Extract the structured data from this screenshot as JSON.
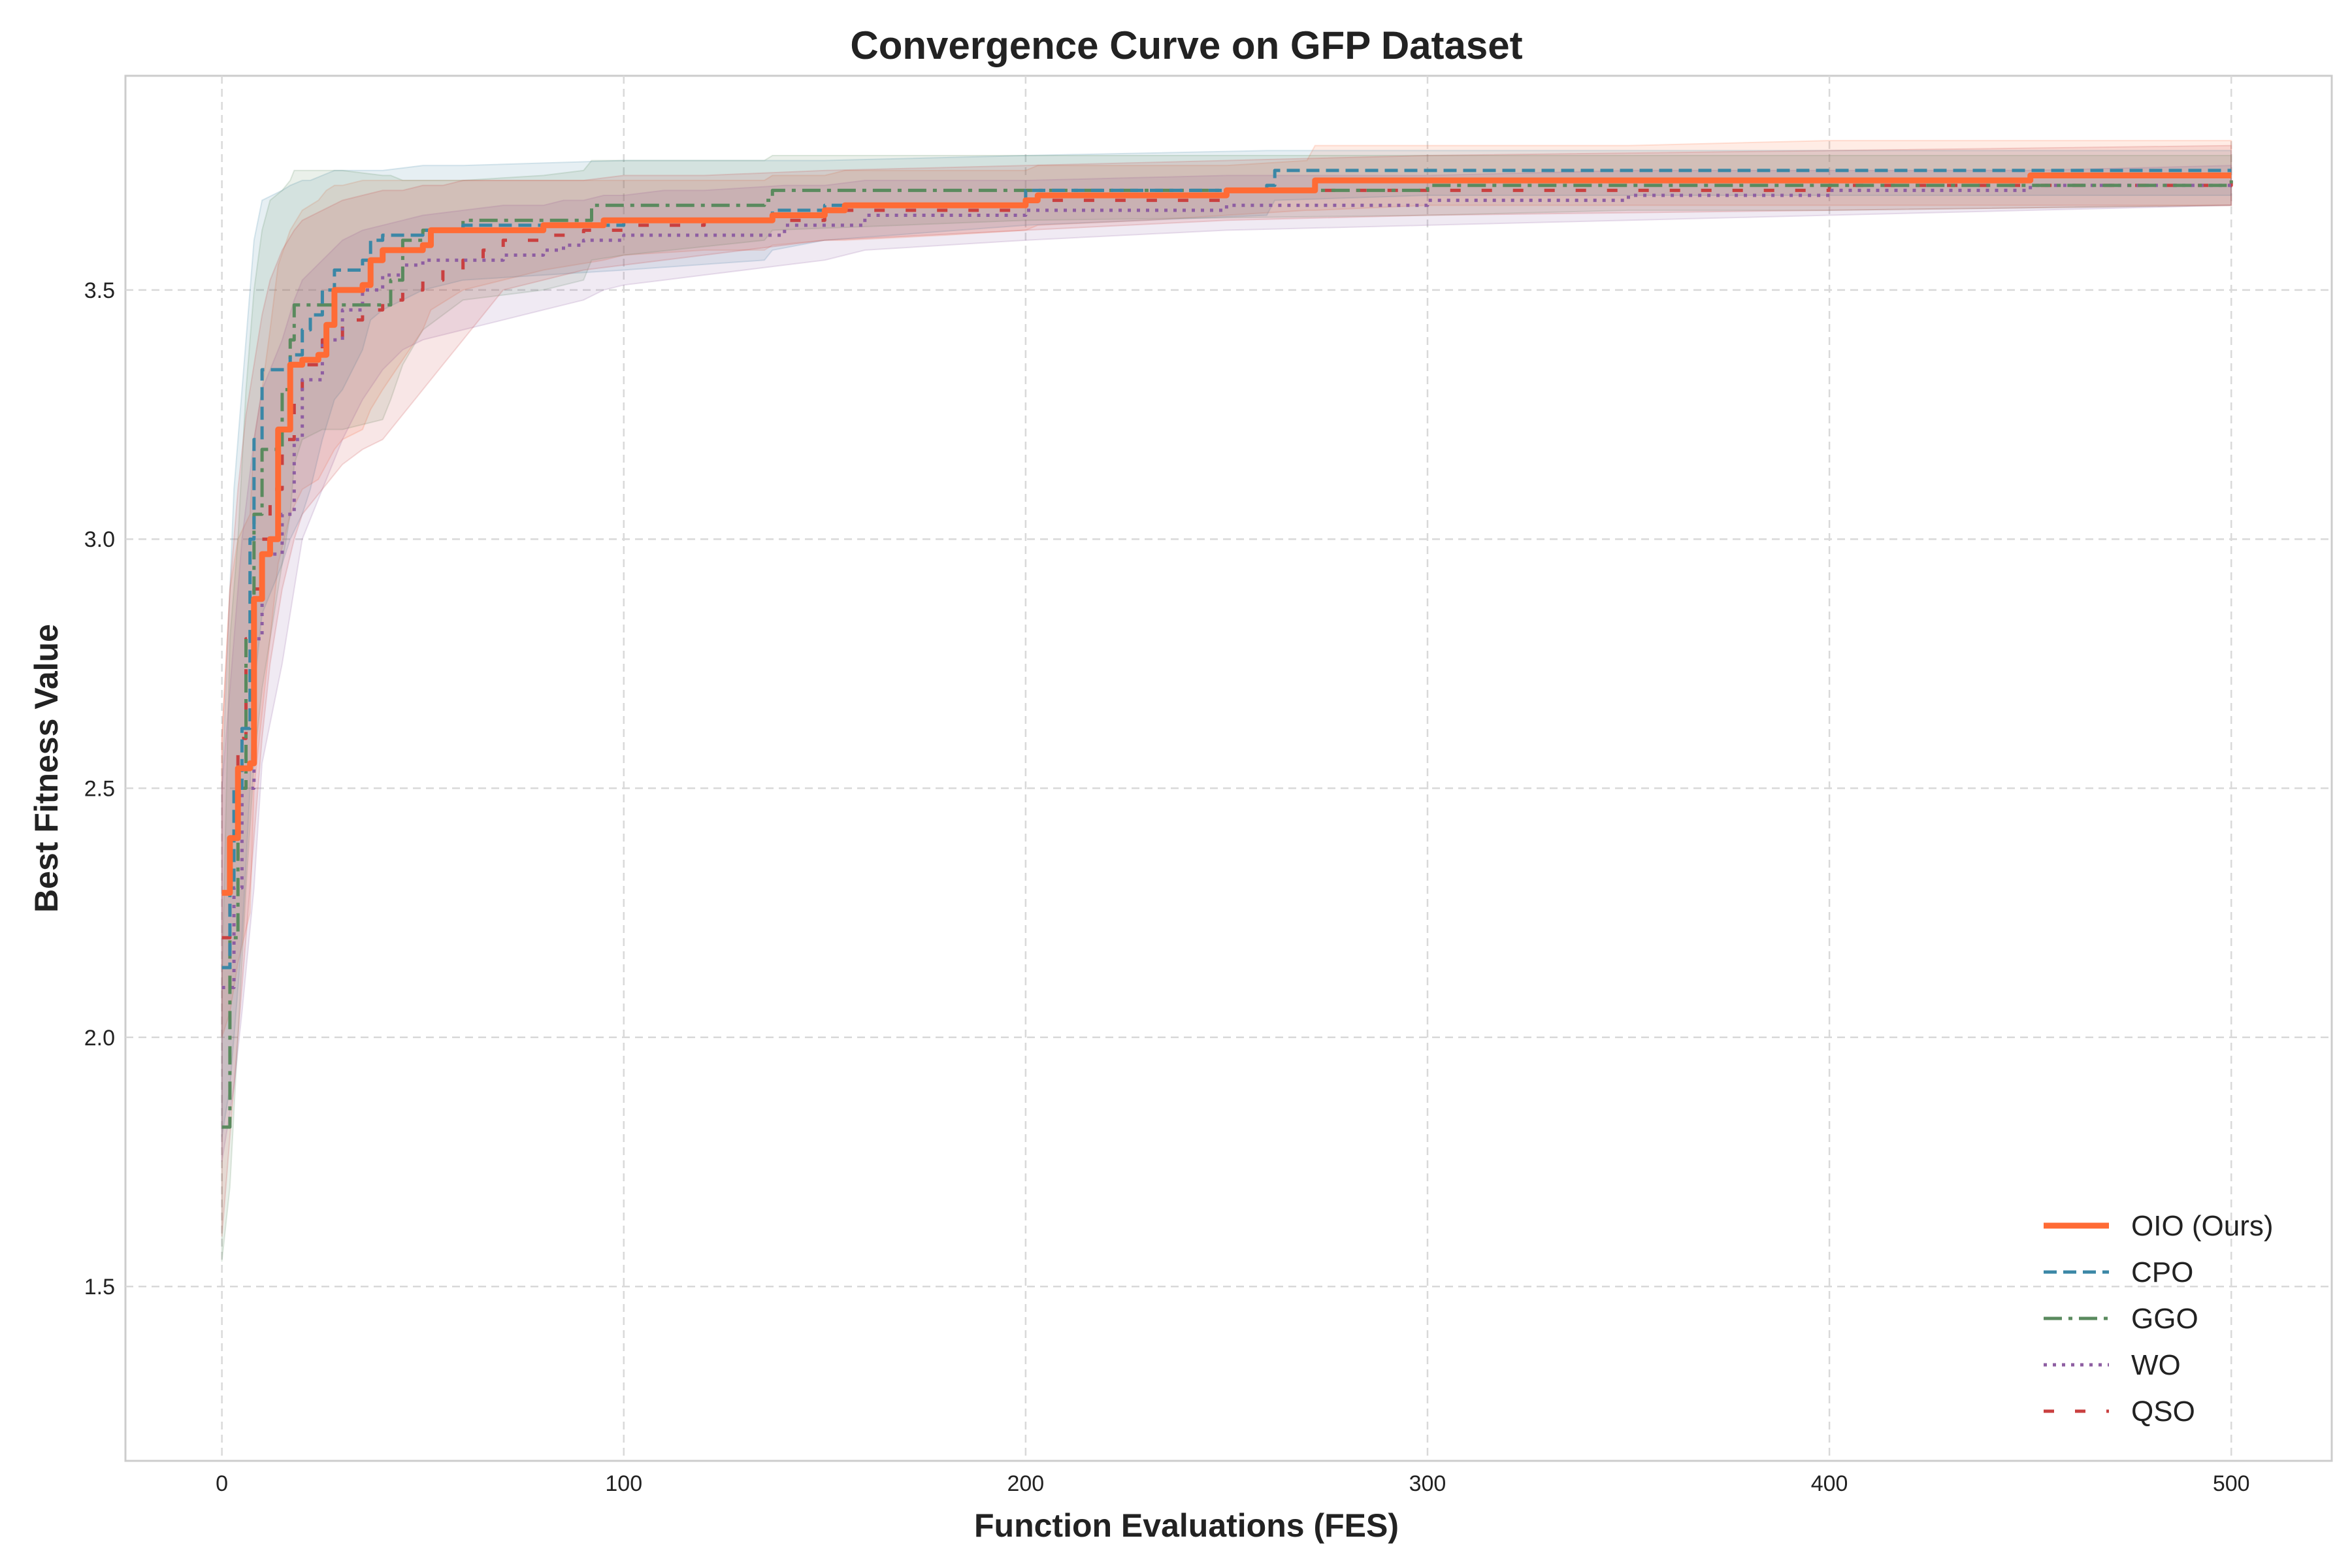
{
  "chart_data": {
    "type": "line",
    "title": "Convergence Curve on GFP Dataset",
    "xlabel": "Function Evaluations (FES)",
    "ylabel": "Best Fitness Value",
    "xlim": [
      -24,
      525
    ],
    "ylim": [
      1.15,
      3.93
    ],
    "xticks": [
      0,
      100,
      200,
      300,
      400,
      500
    ],
    "yticks": [
      1.5,
      2.0,
      2.5,
      3.0,
      3.5
    ],
    "xtick_labels": [
      "0",
      "100",
      "200",
      "300",
      "400",
      "500"
    ],
    "ytick_labels": [
      "1.5",
      "2.0",
      "2.5",
      "3.0",
      "3.5"
    ],
    "grid": true,
    "legend_position": "lower-right",
    "series": [
      {
        "name": "OIO (Ours)",
        "color": "#ff6b35",
        "dash": "solid",
        "x": [
          0,
          2,
          4,
          7,
          8,
          10,
          12,
          14,
          17,
          20,
          24,
          26,
          28,
          30,
          35,
          37,
          40,
          45,
          50,
          52,
          60,
          80,
          95,
          100,
          120,
          135,
          137,
          150,
          155,
          180,
          200,
          203,
          230,
          250,
          270,
          272,
          300,
          350,
          400,
          450,
          500
        ],
        "values": [
          2.29,
          2.4,
          2.54,
          2.55,
          2.88,
          2.97,
          3.0,
          3.22,
          3.35,
          3.36,
          3.37,
          3.43,
          3.5,
          3.5,
          3.51,
          3.56,
          3.58,
          3.58,
          3.59,
          3.62,
          3.62,
          3.63,
          3.64,
          3.64,
          3.64,
          3.64,
          3.65,
          3.66,
          3.67,
          3.67,
          3.68,
          3.69,
          3.69,
          3.7,
          3.7,
          3.72,
          3.72,
          3.72,
          3.72,
          3.73,
          3.73
        ],
        "band_upper": [
          2.6,
          2.9,
          3.0,
          3.05,
          3.2,
          3.3,
          3.42,
          3.55,
          3.62,
          3.66,
          3.68,
          3.7,
          3.71,
          3.71,
          3.72,
          3.72,
          3.72,
          3.72,
          3.72,
          3.72,
          3.72,
          3.72,
          3.72,
          3.72,
          3.72,
          3.72,
          3.73,
          3.73,
          3.74,
          3.74,
          3.74,
          3.75,
          3.75,
          3.75,
          3.76,
          3.79,
          3.79,
          3.79,
          3.8,
          3.8,
          3.8
        ],
        "band_lower": [
          2.0,
          2.05,
          2.15,
          2.25,
          2.5,
          2.65,
          2.8,
          2.95,
          3.05,
          3.1,
          3.12,
          3.15,
          3.18,
          3.2,
          3.22,
          3.26,
          3.3,
          3.36,
          3.42,
          3.46,
          3.5,
          3.54,
          3.56,
          3.57,
          3.58,
          3.58,
          3.59,
          3.6,
          3.6,
          3.61,
          3.62,
          3.63,
          3.64,
          3.65,
          3.66,
          3.66,
          3.67,
          3.67,
          3.67,
          3.67,
          3.67
        ]
      },
      {
        "name": "CPO",
        "color": "#3b87a6",
        "dash": "dashed",
        "x": [
          0,
          2,
          3,
          5,
          7,
          8,
          10,
          15,
          17,
          20,
          22,
          25,
          28,
          30,
          35,
          37,
          40,
          50,
          60,
          100,
          135,
          137,
          150,
          200,
          260,
          262,
          300,
          400,
          500
        ],
        "values": [
          2.14,
          2.3,
          2.5,
          2.62,
          3.0,
          3.2,
          3.34,
          3.34,
          3.37,
          3.42,
          3.45,
          3.5,
          3.54,
          3.54,
          3.56,
          3.6,
          3.61,
          3.62,
          3.63,
          3.64,
          3.64,
          3.66,
          3.67,
          3.7,
          3.71,
          3.74,
          3.74,
          3.74,
          3.74
        ],
        "band_upper": [
          2.5,
          2.9,
          3.1,
          3.3,
          3.5,
          3.6,
          3.68,
          3.7,
          3.71,
          3.72,
          3.72,
          3.73,
          3.74,
          3.74,
          3.74,
          3.74,
          3.74,
          3.75,
          3.75,
          3.76,
          3.76,
          3.76,
          3.76,
          3.77,
          3.78,
          3.78,
          3.78,
          3.78,
          3.78
        ],
        "band_lower": [
          1.8,
          1.9,
          2.0,
          2.2,
          2.5,
          2.7,
          2.85,
          2.95,
          3.0,
          3.05,
          3.1,
          3.2,
          3.28,
          3.3,
          3.38,
          3.44,
          3.46,
          3.5,
          3.52,
          3.54,
          3.56,
          3.58,
          3.6,
          3.63,
          3.65,
          3.68,
          3.69,
          3.69,
          3.69
        ]
      },
      {
        "name": "GGO",
        "color": "#5a8a5e",
        "dash": "dashdot",
        "x": [
          0,
          2,
          4,
          6,
          8,
          10,
          12,
          15,
          17,
          18,
          20,
          25,
          28,
          30,
          40,
          42,
          45,
          50,
          60,
          80,
          90,
          92,
          100,
          135,
          137,
          200,
          300,
          350,
          400,
          500
        ],
        "values": [
          1.82,
          2.2,
          2.5,
          2.8,
          3.05,
          3.18,
          3.18,
          3.3,
          3.4,
          3.47,
          3.47,
          3.47,
          3.47,
          3.47,
          3.47,
          3.52,
          3.6,
          3.62,
          3.64,
          3.64,
          3.64,
          3.67,
          3.67,
          3.68,
          3.7,
          3.7,
          3.71,
          3.71,
          3.71,
          3.72
        ],
        "band_upper": [
          2.1,
          2.8,
          3.0,
          3.3,
          3.5,
          3.62,
          3.68,
          3.7,
          3.72,
          3.74,
          3.74,
          3.74,
          3.74,
          3.74,
          3.73,
          3.73,
          3.72,
          3.72,
          3.72,
          3.73,
          3.74,
          3.76,
          3.76,
          3.76,
          3.77,
          3.77,
          3.77,
          3.77,
          3.77,
          3.77
        ],
        "band_lower": [
          1.55,
          1.7,
          2.0,
          2.3,
          2.55,
          2.7,
          2.8,
          2.95,
          3.05,
          3.15,
          3.2,
          3.22,
          3.22,
          3.22,
          3.24,
          3.28,
          3.35,
          3.42,
          3.48,
          3.5,
          3.52,
          3.56,
          3.57,
          3.6,
          3.62,
          3.64,
          3.65,
          3.66,
          3.66,
          3.67
        ]
      },
      {
        "name": "WO",
        "color": "#8e5ea2",
        "dash": "dotted",
        "x": [
          0,
          3,
          5,
          8,
          10,
          15,
          18,
          20,
          25,
          30,
          35,
          40,
          45,
          50,
          60,
          70,
          80,
          85,
          90,
          95,
          100,
          110,
          120,
          140,
          150,
          160,
          200,
          250,
          300,
          350,
          400,
          450,
          500
        ],
        "values": [
          2.1,
          2.3,
          2.5,
          2.8,
          2.97,
          3.05,
          3.2,
          3.32,
          3.4,
          3.46,
          3.5,
          3.53,
          3.55,
          3.56,
          3.56,
          3.57,
          3.58,
          3.59,
          3.6,
          3.6,
          3.61,
          3.61,
          3.61,
          3.63,
          3.63,
          3.65,
          3.66,
          3.67,
          3.68,
          3.69,
          3.7,
          3.71,
          3.71
        ],
        "band_upper": [
          2.5,
          2.8,
          3.0,
          3.2,
          3.3,
          3.4,
          3.48,
          3.52,
          3.56,
          3.6,
          3.62,
          3.63,
          3.64,
          3.65,
          3.66,
          3.67,
          3.67,
          3.68,
          3.68,
          3.69,
          3.69,
          3.7,
          3.7,
          3.71,
          3.71,
          3.72,
          3.72,
          3.73,
          3.73,
          3.74,
          3.74,
          3.74,
          3.75
        ],
        "band_lower": [
          1.75,
          1.9,
          2.05,
          2.3,
          2.55,
          2.75,
          2.9,
          3.0,
          3.1,
          3.2,
          3.28,
          3.34,
          3.38,
          3.4,
          3.42,
          3.44,
          3.46,
          3.47,
          3.48,
          3.5,
          3.51,
          3.52,
          3.53,
          3.55,
          3.56,
          3.58,
          3.6,
          3.62,
          3.63,
          3.64,
          3.65,
          3.66,
          3.67
        ]
      },
      {
        "name": "QSO",
        "color": "#c94040",
        "dash": "loosedash",
        "x": [
          0,
          2,
          4,
          6,
          8,
          10,
          12,
          15,
          18,
          20,
          25,
          30,
          35,
          40,
          45,
          50,
          55,
          60,
          65,
          70,
          80,
          90,
          100,
          120,
          150,
          200,
          250,
          300,
          400,
          500
        ],
        "values": [
          2.2,
          2.35,
          2.6,
          2.8,
          2.9,
          3.0,
          3.1,
          3.2,
          3.3,
          3.35,
          3.4,
          3.44,
          3.46,
          3.48,
          3.5,
          3.52,
          3.54,
          3.56,
          3.58,
          3.6,
          3.61,
          3.62,
          3.63,
          3.64,
          3.66,
          3.68,
          3.7,
          3.7,
          3.71,
          3.72
        ],
        "band_upper": [
          2.6,
          2.9,
          3.1,
          3.25,
          3.35,
          3.45,
          3.52,
          3.58,
          3.62,
          3.64,
          3.66,
          3.68,
          3.69,
          3.7,
          3.7,
          3.71,
          3.71,
          3.72,
          3.72,
          3.72,
          3.72,
          3.72,
          3.73,
          3.73,
          3.74,
          3.75,
          3.76,
          3.77,
          3.78,
          3.79
        ],
        "band_lower": [
          1.6,
          1.8,
          2.0,
          2.2,
          2.4,
          2.6,
          2.75,
          2.9,
          3.0,
          3.05,
          3.1,
          3.15,
          3.18,
          3.2,
          3.25,
          3.3,
          3.35,
          3.4,
          3.45,
          3.5,
          3.52,
          3.54,
          3.55,
          3.57,
          3.6,
          3.62,
          3.64,
          3.65,
          3.66,
          3.67
        ]
      }
    ]
  }
}
